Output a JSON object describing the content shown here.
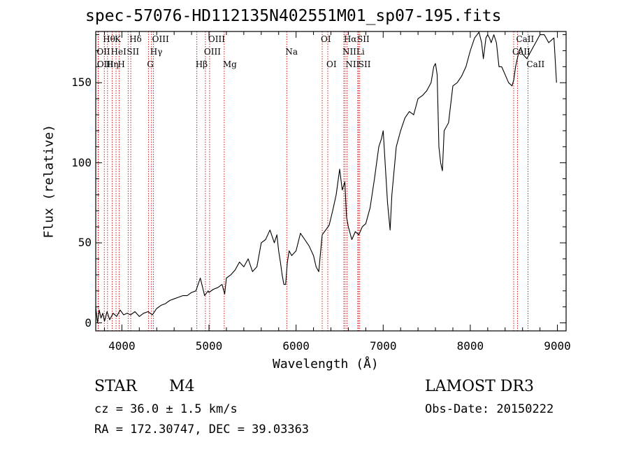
{
  "chart_data": {
    "type": "line",
    "title": "spec-57076-HD112135N402551M01_sp07-195.fits",
    "xlabel": "Wavelength (Å)",
    "ylabel": "Flux (relative)",
    "xlim": [
      3700,
      9100
    ],
    "ylim": [
      -5,
      182
    ],
    "xticks": [
      4000,
      5000,
      6000,
      7000,
      8000,
      9000
    ],
    "xtick_labels": [
      "4000",
      "5000",
      "6000",
      "7000",
      "8000",
      "9000"
    ],
    "yticks": [
      0,
      50,
      100,
      150
    ],
    "ytick_labels": [
      "0",
      "50",
      "100",
      "150"
    ],
    "series": [
      {
        "name": "flux",
        "x": [
          3700,
          3720,
          3740,
          3760,
          3780,
          3800,
          3830,
          3860,
          3900,
          3940,
          3980,
          4020,
          4060,
          4100,
          4150,
          4200,
          4250,
          4300,
          4350,
          4400,
          4450,
          4500,
          4550,
          4600,
          4650,
          4700,
          4750,
          4800,
          4850,
          4900,
          4950,
          4990,
          5000,
          5050,
          5100,
          5150,
          5180,
          5200,
          5250,
          5300,
          5350,
          5400,
          5450,
          5500,
          5550,
          5600,
          5650,
          5700,
          5750,
          5780,
          5800,
          5820,
          5840,
          5860,
          5880,
          5900,
          5920,
          5950,
          6000,
          6050,
          6100,
          6150,
          6200,
          6230,
          6260,
          6300,
          6340,
          6380,
          6420,
          6460,
          6500,
          6530,
          6560,
          6580,
          6600,
          6640,
          6680,
          6720,
          6760,
          6800,
          6850,
          6900,
          6950,
          6980,
          7000,
          7050,
          7080,
          7100,
          7150,
          7200,
          7250,
          7300,
          7350,
          7400,
          7450,
          7500,
          7550,
          7580,
          7600,
          7620,
          7640,
          7660,
          7680,
          7700,
          7750,
          7800,
          7850,
          7900,
          7950,
          8000,
          8050,
          8100,
          8130,
          8150,
          8180,
          8200,
          8220,
          8240,
          8270,
          8300,
          8330,
          8360,
          8400,
          8440,
          8480,
          8500,
          8520,
          8540,
          8560,
          8580,
          8600,
          8650,
          8700,
          8750,
          8800,
          8850,
          8900,
          8960,
          8990
        ],
        "values": [
          10,
          0,
          8,
          3,
          6,
          1,
          7,
          2,
          6,
          4,
          8,
          5,
          6,
          5,
          7,
          4,
          6,
          7,
          5,
          9,
          11,
          12,
          14,
          15,
          16,
          17,
          17,
          19,
          20,
          28,
          17,
          20,
          19,
          21,
          22,
          24,
          18,
          28,
          30,
          33,
          38,
          35,
          40,
          32,
          35,
          50,
          52,
          58,
          50,
          55,
          45,
          38,
          30,
          24,
          24,
          38,
          45,
          42,
          45,
          56,
          52,
          48,
          42,
          35,
          32,
          55,
          58,
          61,
          70,
          80,
          96,
          83,
          88,
          66,
          60,
          52,
          57,
          55,
          60,
          62,
          72,
          90,
          110,
          115,
          120,
          75,
          58,
          80,
          110,
          120,
          128,
          132,
          130,
          140,
          142,
          145,
          150,
          160,
          162,
          155,
          110,
          100,
          95,
          120,
          125,
          148,
          150,
          154,
          160,
          170,
          178,
          184,
          175,
          165,
          178,
          180,
          178,
          175,
          180,
          175,
          160,
          160,
          155,
          150,
          148,
          152,
          160,
          165,
          170,
          172,
          168,
          165,
          170,
          175,
          180,
          180,
          175,
          178,
          150
        ]
      }
    ],
    "lines": [
      {
        "name": "Hθ",
        "wave": 3798,
        "row": 1
      },
      {
        "name": "OII",
        "wave": 3727,
        "row": 2
      },
      {
        "name": "OIII",
        "wave": 3730,
        "row": 3
      },
      {
        "name": "K",
        "wave": 3933,
        "row": 1
      },
      {
        "name": "HeI",
        "wave": 3889,
        "row": 2
      },
      {
        "name": "Hη",
        "wave": 3835,
        "row": 3
      },
      {
        "name": "Hδ",
        "wave": 4102,
        "row": 1
      },
      {
        "name": "SII",
        "wave": 4072,
        "row": 2
      },
      {
        "name": "H",
        "wave": 3968,
        "row": 3
      },
      {
        "name": "OIII",
        "wave": 4363,
        "row": 1
      },
      {
        "name": "Hγ",
        "wave": 4340,
        "row": 2
      },
      {
        "name": "G",
        "wave": 4305,
        "row": 3
      },
      {
        "name": "OIII",
        "wave": 5007,
        "row": 1
      },
      {
        "name": "OIII",
        "wave": 4959,
        "row": 2
      },
      {
        "name": "Hβ",
        "wave": 4861,
        "row": 3
      },
      {
        "name": "Mg",
        "wave": 5175,
        "row": 3
      },
      {
        "name": "Na",
        "wave": 5893,
        "row": 2
      },
      {
        "name": "OI",
        "wave": 6300,
        "row": 1
      },
      {
        "name": "OI",
        "wave": 6364,
        "row": 3
      },
      {
        "name": "Hα",
        "wave": 6563,
        "row": 1
      },
      {
        "name": "NII",
        "wave": 6548,
        "row": 2
      },
      {
        "name": "NII",
        "wave": 6584,
        "row": 3
      },
      {
        "name": "SII",
        "wave": 6717,
        "row": 1
      },
      {
        "name": "Li",
        "wave": 6708,
        "row": 2
      },
      {
        "name": "SII",
        "wave": 6731,
        "row": 3
      },
      {
        "name": "CaII",
        "wave": 8542,
        "row": 1
      },
      {
        "name": "CaII",
        "wave": 8498,
        "row": 2
      },
      {
        "name": "CaII",
        "wave": 8662,
        "row": 3
      }
    ]
  },
  "info": {
    "star_label": "STAR",
    "subclass": "M4",
    "survey": "LAMOST DR3",
    "cz": "cz = 36.0 ± 1.5 km/s",
    "obs_date": "Obs-Date: 20150222",
    "radec": "RA = 172.30747, DEC =  39.03363"
  },
  "colors": {
    "spectrum": "#000000",
    "line_markers": "#cc0000",
    "axis": "#000000"
  }
}
